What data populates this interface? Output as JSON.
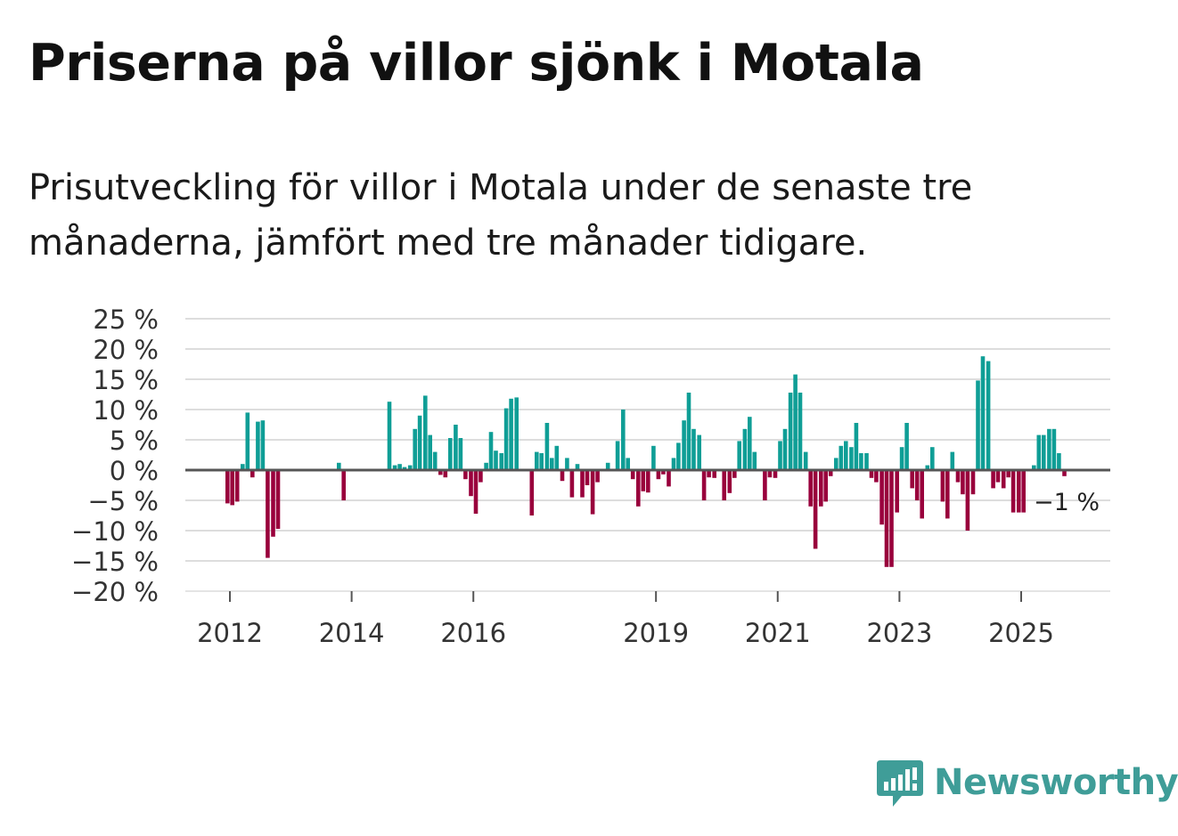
{
  "title": "Priserna på villor sjönk i Motala",
  "subtitle": "Prisutveckling för villor i Motala under de senaste tre månaderna, jämfört med tre månader tidigare.",
  "brand": "Newsworthy",
  "colors": {
    "positive": "#0f9e96",
    "negative": "#99003c",
    "grid": "#dddddd",
    "zero": "#555555",
    "text": "#333333"
  },
  "chart_data": {
    "type": "bar",
    "ylim": [
      -20,
      25
    ],
    "yticks": [
      25,
      20,
      15,
      10,
      5,
      0,
      -5,
      -10,
      -15,
      -20
    ],
    "ytick_labels": [
      "25 %",
      "20 %",
      "15 %",
      "10 %",
      "5 %",
      "0 %",
      "−5 %",
      "−10 %",
      "−15 %",
      "−20 %"
    ],
    "x_start": 2011.5,
    "x_end": 2026.7,
    "xticks": [
      {
        "year": 2012,
        "label": "2012"
      },
      {
        "year": 2014,
        "label": "2014"
      },
      {
        "year": 2016,
        "label": "2016"
      },
      {
        "year": 2019,
        "label": "2019"
      },
      {
        "year": 2021,
        "label": "2021"
      },
      {
        "year": 2023,
        "label": "2023"
      },
      {
        "year": 2025,
        "label": "2025"
      }
    ],
    "series": [
      {
        "x": 2011.96,
        "v": -5.5
      },
      {
        "x": 2012.04,
        "v": -5.8
      },
      {
        "x": 2012.12,
        "v": -5.2
      },
      {
        "x": 2012.21,
        "v": 1.0
      },
      {
        "x": 2012.29,
        "v": 9.5
      },
      {
        "x": 2012.37,
        "v": -1.2
      },
      {
        "x": 2012.46,
        "v": 8.0
      },
      {
        "x": 2012.54,
        "v": 8.2
      },
      {
        "x": 2012.62,
        "v": -14.5
      },
      {
        "x": 2012.71,
        "v": -11.0
      },
      {
        "x": 2012.79,
        "v": -9.7
      },
      {
        "x": 2013.79,
        "v": 1.2
      },
      {
        "x": 2013.87,
        "v": -5.0
      },
      {
        "x": 2014.62,
        "v": 11.3
      },
      {
        "x": 2014.71,
        "v": 0.8
      },
      {
        "x": 2014.79,
        "v": 1.0
      },
      {
        "x": 2014.87,
        "v": 0.5
      },
      {
        "x": 2014.96,
        "v": 0.8
      },
      {
        "x": 2015.04,
        "v": 6.8
      },
      {
        "x": 2015.12,
        "v": 9.0
      },
      {
        "x": 2015.21,
        "v": 12.3
      },
      {
        "x": 2015.29,
        "v": 5.8
      },
      {
        "x": 2015.37,
        "v": 3.0
      },
      {
        "x": 2015.46,
        "v": -0.8
      },
      {
        "x": 2015.54,
        "v": -1.2
      },
      {
        "x": 2015.62,
        "v": 5.3
      },
      {
        "x": 2015.71,
        "v": 7.5
      },
      {
        "x": 2015.79,
        "v": 5.3
      },
      {
        "x": 2015.87,
        "v": -1.5
      },
      {
        "x": 2015.96,
        "v": -4.3
      },
      {
        "x": 2016.04,
        "v": -7.2
      },
      {
        "x": 2016.12,
        "v": -2.0
      },
      {
        "x": 2016.21,
        "v": 1.2
      },
      {
        "x": 2016.29,
        "v": 6.3
      },
      {
        "x": 2016.37,
        "v": 3.2
      },
      {
        "x": 2016.46,
        "v": 2.8
      },
      {
        "x": 2016.54,
        "v": 10.2
      },
      {
        "x": 2016.62,
        "v": 11.8
      },
      {
        "x": 2016.71,
        "v": 12.0
      },
      {
        "x": 2016.96,
        "v": -7.5
      },
      {
        "x": 2017.04,
        "v": 3.0
      },
      {
        "x": 2017.12,
        "v": 2.8
      },
      {
        "x": 2017.21,
        "v": 7.8
      },
      {
        "x": 2017.29,
        "v": 2.0
      },
      {
        "x": 2017.37,
        "v": 4.0
      },
      {
        "x": 2017.46,
        "v": -1.8
      },
      {
        "x": 2017.54,
        "v": 2.0
      },
      {
        "x": 2017.62,
        "v": -4.5
      },
      {
        "x": 2017.71,
        "v": 1.0
      },
      {
        "x": 2017.79,
        "v": -4.5
      },
      {
        "x": 2017.87,
        "v": -2.5
      },
      {
        "x": 2017.96,
        "v": -7.3
      },
      {
        "x": 2018.04,
        "v": -2.0
      },
      {
        "x": 2018.21,
        "v": 1.2
      },
      {
        "x": 2018.37,
        "v": 4.8
      },
      {
        "x": 2018.46,
        "v": 10.0
      },
      {
        "x": 2018.54,
        "v": 2.0
      },
      {
        "x": 2018.62,
        "v": -1.5
      },
      {
        "x": 2018.71,
        "v": -6.0
      },
      {
        "x": 2018.79,
        "v": -3.5
      },
      {
        "x": 2018.87,
        "v": -3.7
      },
      {
        "x": 2018.96,
        "v": 4.0
      },
      {
        "x": 2019.04,
        "v": -1.5
      },
      {
        "x": 2019.12,
        "v": -0.7
      },
      {
        "x": 2019.21,
        "v": -2.7
      },
      {
        "x": 2019.29,
        "v": 2.0
      },
      {
        "x": 2019.37,
        "v": 4.5
      },
      {
        "x": 2019.46,
        "v": 8.2
      },
      {
        "x": 2019.54,
        "v": 12.8
      },
      {
        "x": 2019.62,
        "v": 6.8
      },
      {
        "x": 2019.71,
        "v": 5.8
      },
      {
        "x": 2019.79,
        "v": -5.0
      },
      {
        "x": 2019.87,
        "v": -1.2
      },
      {
        "x": 2019.96,
        "v": -1.3
      },
      {
        "x": 2020.12,
        "v": -5.0
      },
      {
        "x": 2020.21,
        "v": -3.8
      },
      {
        "x": 2020.29,
        "v": -1.3
      },
      {
        "x": 2020.37,
        "v": 4.8
      },
      {
        "x": 2020.46,
        "v": 6.8
      },
      {
        "x": 2020.54,
        "v": 8.8
      },
      {
        "x": 2020.62,
        "v": 3.0
      },
      {
        "x": 2020.79,
        "v": -5.0
      },
      {
        "x": 2020.87,
        "v": -1.2
      },
      {
        "x": 2020.96,
        "v": -1.3
      },
      {
        "x": 2021.04,
        "v": 4.8
      },
      {
        "x": 2021.12,
        "v": 6.8
      },
      {
        "x": 2021.21,
        "v": 12.8
      },
      {
        "x": 2021.29,
        "v": 15.8
      },
      {
        "x": 2021.37,
        "v": 12.8
      },
      {
        "x": 2021.46,
        "v": 3.0
      },
      {
        "x": 2021.54,
        "v": -6.0
      },
      {
        "x": 2021.62,
        "v": -13.0
      },
      {
        "x": 2021.71,
        "v": -6.0
      },
      {
        "x": 2021.79,
        "v": -5.2
      },
      {
        "x": 2021.87,
        "v": -1.0
      },
      {
        "x": 2021.96,
        "v": 2.0
      },
      {
        "x": 2022.04,
        "v": 4.0
      },
      {
        "x": 2022.12,
        "v": 4.8
      },
      {
        "x": 2022.21,
        "v": 3.8
      },
      {
        "x": 2022.29,
        "v": 7.8
      },
      {
        "x": 2022.37,
        "v": 2.8
      },
      {
        "x": 2022.46,
        "v": 2.8
      },
      {
        "x": 2022.54,
        "v": -1.3
      },
      {
        "x": 2022.62,
        "v": -2.0
      },
      {
        "x": 2022.71,
        "v": -9.0
      },
      {
        "x": 2022.79,
        "v": -16.0
      },
      {
        "x": 2022.87,
        "v": -16.0
      },
      {
        "x": 2022.96,
        "v": -7.0
      },
      {
        "x": 2023.04,
        "v": 3.8
      },
      {
        "x": 2023.12,
        "v": 7.8
      },
      {
        "x": 2023.21,
        "v": -3.0
      },
      {
        "x": 2023.29,
        "v": -5.0
      },
      {
        "x": 2023.37,
        "v": -8.0
      },
      {
        "x": 2023.46,
        "v": 0.8
      },
      {
        "x": 2023.54,
        "v": 3.8
      },
      {
        "x": 2023.71,
        "v": -5.2
      },
      {
        "x": 2023.79,
        "v": -8.0
      },
      {
        "x": 2023.87,
        "v": 3.0
      },
      {
        "x": 2023.96,
        "v": -2.0
      },
      {
        "x": 2024.04,
        "v": -4.0
      },
      {
        "x": 2024.12,
        "v": -10.0
      },
      {
        "x": 2024.21,
        "v": -4.0
      },
      {
        "x": 2024.29,
        "v": 14.8
      },
      {
        "x": 2024.37,
        "v": 18.8
      },
      {
        "x": 2024.46,
        "v": 18.0
      },
      {
        "x": 2024.54,
        "v": -3.0
      },
      {
        "x": 2024.62,
        "v": -2.0
      },
      {
        "x": 2024.71,
        "v": -3.0
      },
      {
        "x": 2024.79,
        "v": -1.2
      },
      {
        "x": 2024.87,
        "v": -7.0
      },
      {
        "x": 2024.96,
        "v": -7.0
      },
      {
        "x": 2025.04,
        "v": -7.0
      },
      {
        "x": 2025.21,
        "v": 0.8
      },
      {
        "x": 2025.29,
        "v": 5.8
      },
      {
        "x": 2025.37,
        "v": 5.8
      },
      {
        "x": 2025.46,
        "v": 6.8
      },
      {
        "x": 2025.54,
        "v": 6.8
      },
      {
        "x": 2025.62,
        "v": 2.8
      },
      {
        "x": 2025.71,
        "v": -1.0
      }
    ],
    "last_label": "−1 %"
  }
}
